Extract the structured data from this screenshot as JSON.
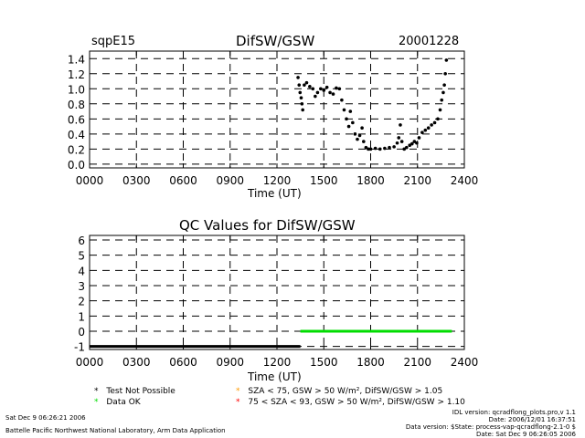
{
  "header": {
    "site": "sqpE15",
    "date": "20001228"
  },
  "colors": {
    "data_ok": "#00dd00",
    "test_not_possible": "#000000",
    "sza75": "#ff9900",
    "sza93": "#ff0000"
  },
  "chart_data": [
    {
      "type": "scatter",
      "title": "DifSW/GSW",
      "xlabel": "Time (UT)",
      "ylabel": "",
      "xlim": [
        0,
        24
      ],
      "ylim": [
        -0.05,
        1.5
      ],
      "x_ticks": [
        "0000",
        "0300",
        "0600",
        "0900",
        "1200",
        "1500",
        "1800",
        "2100",
        "2400"
      ],
      "y_ticks": [
        "0.0",
        "0.2",
        "0.4",
        "0.6",
        "0.8",
        "1.0",
        "1.2",
        "1.4"
      ],
      "grid": true,
      "series": [
        {
          "color": "#000000",
          "points": [
            [
              13.35,
              1.15
            ],
            [
              13.42,
              1.05
            ],
            [
              13.48,
              0.95
            ],
            [
              13.55,
              0.88
            ],
            [
              13.6,
              0.8
            ],
            [
              13.65,
              0.72
            ],
            [
              13.75,
              1.05
            ],
            [
              13.9,
              1.08
            ],
            [
              14.1,
              1.03
            ],
            [
              14.3,
              1.0
            ],
            [
              14.45,
              0.9
            ],
            [
              14.6,
              0.95
            ],
            [
              14.8,
              1.0
            ],
            [
              15.0,
              0.98
            ],
            [
              15.2,
              1.02
            ],
            [
              15.4,
              0.95
            ],
            [
              15.6,
              0.93
            ],
            [
              15.8,
              1.01
            ],
            [
              16.0,
              1.0
            ],
            [
              16.15,
              0.85
            ],
            [
              16.3,
              0.72
            ],
            [
              16.45,
              0.6
            ],
            [
              16.6,
              0.5
            ],
            [
              16.7,
              0.7
            ],
            [
              16.85,
              0.55
            ],
            [
              17.0,
              0.4
            ],
            [
              17.15,
              0.33
            ],
            [
              17.3,
              0.38
            ],
            [
              17.45,
              0.48
            ],
            [
              17.55,
              0.3
            ],
            [
              17.7,
              0.22
            ],
            [
              17.85,
              0.2
            ],
            [
              18.0,
              0.2
            ],
            [
              18.3,
              0.21
            ],
            [
              18.6,
              0.2
            ],
            [
              18.9,
              0.21
            ],
            [
              19.2,
              0.22
            ],
            [
              19.5,
              0.23
            ],
            [
              19.7,
              0.28
            ],
            [
              19.8,
              0.35
            ],
            [
              19.9,
              0.52
            ],
            [
              20.0,
              0.3
            ],
            [
              20.15,
              0.2
            ],
            [
              20.3,
              0.22
            ],
            [
              20.5,
              0.25
            ],
            [
              20.65,
              0.27
            ],
            [
              20.8,
              0.3
            ],
            [
              20.95,
              0.28
            ],
            [
              21.1,
              0.35
            ],
            [
              21.3,
              0.42
            ],
            [
              21.5,
              0.45
            ],
            [
              21.7,
              0.48
            ],
            [
              21.9,
              0.52
            ],
            [
              22.1,
              0.55
            ],
            [
              22.3,
              0.6
            ],
            [
              22.45,
              0.72
            ],
            [
              22.55,
              0.85
            ],
            [
              22.65,
              0.95
            ],
            [
              22.72,
              1.05
            ],
            [
              22.78,
              1.2
            ],
            [
              22.85,
              1.38
            ]
          ]
        }
      ]
    },
    {
      "type": "line",
      "title": "QC Values for DifSW/GSW",
      "xlabel": "Time (UT)",
      "ylabel": "",
      "xlim": [
        0,
        24
      ],
      "ylim": [
        -1.2,
        6.3
      ],
      "x_ticks": [
        "0000",
        "0300",
        "0600",
        "0900",
        "1200",
        "1500",
        "1800",
        "2100",
        "2400"
      ],
      "y_ticks": [
        "-1",
        "0",
        "1",
        "2",
        "3",
        "4",
        "5",
        "6"
      ],
      "grid": true,
      "series": [
        {
          "color": "#000000",
          "x": [
            0,
            13.5
          ],
          "y": [
            -1,
            -1
          ]
        },
        {
          "color": "#00dd00",
          "x": [
            13.5,
            23.2
          ],
          "y": [
            0,
            0
          ]
        }
      ]
    }
  ],
  "legend": {
    "left": [
      {
        "symbol": "*",
        "color": "#000000",
        "label": "Test Not Possible"
      },
      {
        "symbol": "*",
        "color": "#00dd00",
        "label": "Data OK"
      }
    ],
    "right": [
      {
        "symbol": "*",
        "color": "#ff9900",
        "label": "SZA < 75, GSW > 50 W/m², DifSW/GSW > 1.05"
      },
      {
        "symbol": "*",
        "color": "#ff0000",
        "label": "75 < SZA < 93, GSW > 50 W/m², DifSW/GSW > 1.10"
      }
    ]
  },
  "footer": {
    "left1": "Sat Dec  9 06:26:21 2006",
    "left2": "Battelle Pacific Northwest National Laboratory, Arm Data Application",
    "right1": "IDL version: qcradflong_plots.pro,v 1.1",
    "right2": "Date: 2006/12/01 16:37:51",
    "right3": "Data version: $State: process-vap-qcradflong-2.1-0 $",
    "right4": "Date: Sat Dec  9 06:26:05 2006"
  }
}
